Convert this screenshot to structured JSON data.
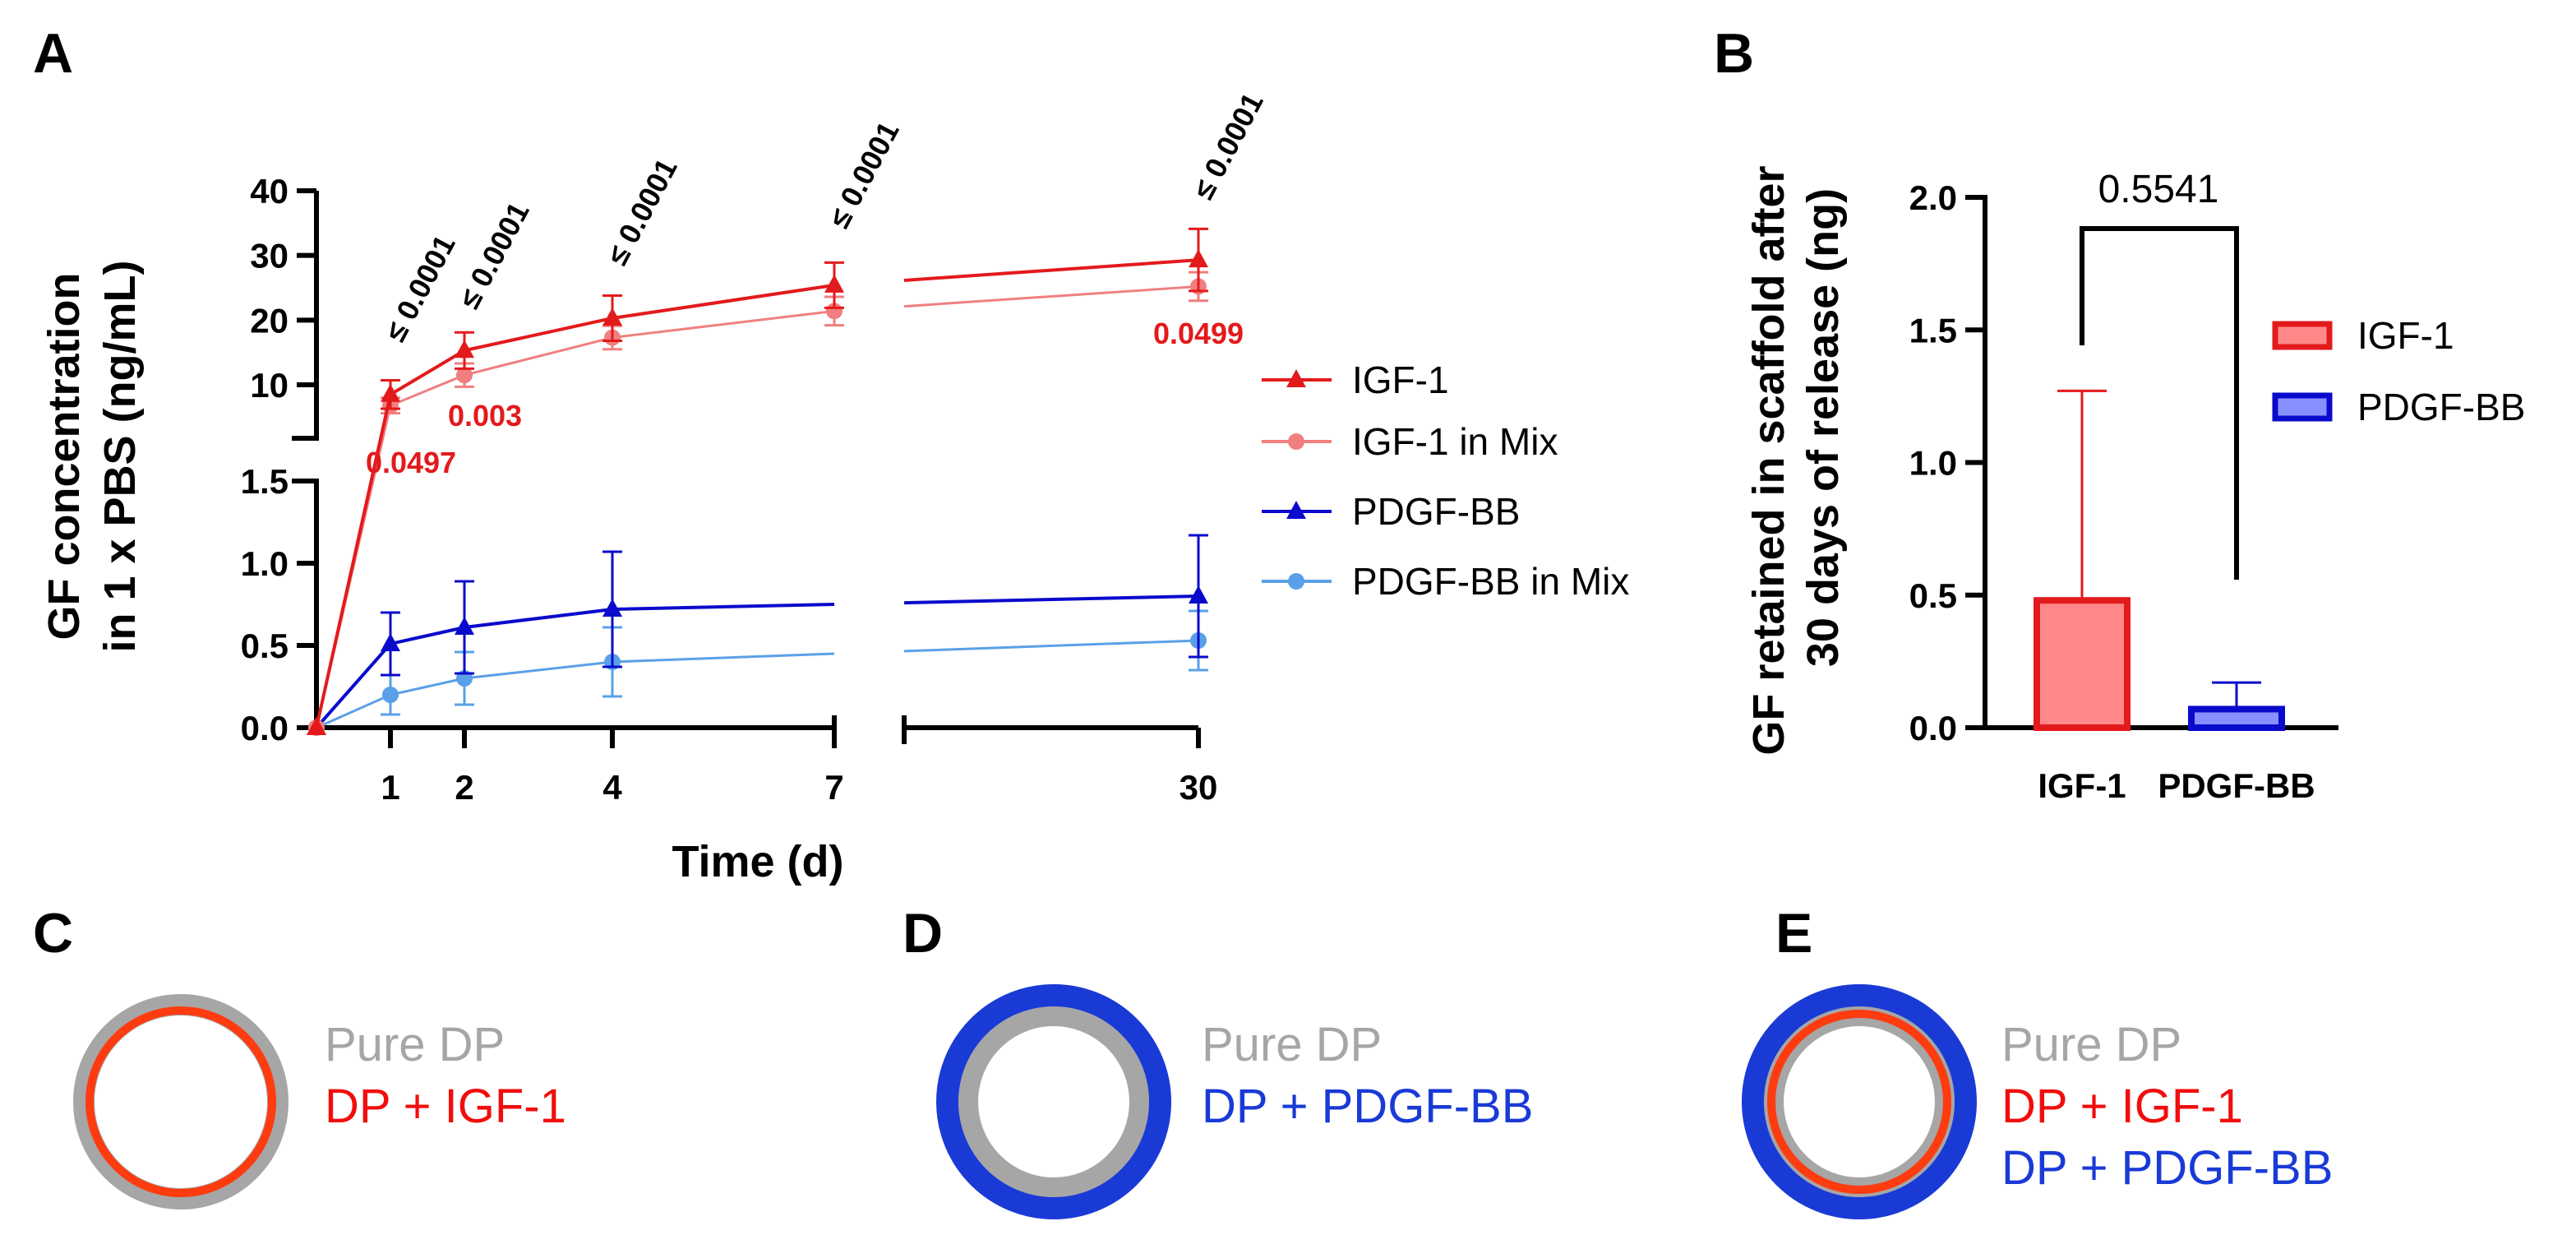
{
  "colors": {
    "igf1": "#e31a1c",
    "igf1_mix": "#f07f7f",
    "pdgfbb": "#0a0acc",
    "pdgfbb_mix": "#5aa0e8",
    "igf1_bar_fill": "#ff8888",
    "pdgfbb_bar_fill": "#8890ff",
    "ring_grey": "#a6a6a6",
    "ring_orange": "#ff3b10",
    "ring_blue": "#1a3ad6",
    "label_grey": "#a6a6a6",
    "label_red": "#f20d0d",
    "label_blue": "#1a3ad6"
  },
  "chart_data": [
    {
      "panel": "A",
      "type": "line",
      "xlabel": "Time (d)",
      "ylabel_lines": [
        "GF concentration",
        "in 1 x PBS (ng/mL)"
      ],
      "x_ticks": [
        "1",
        "2",
        "4",
        "7",
        "30"
      ],
      "upper_y_ticks": [
        "10",
        "20",
        "30",
        "40"
      ],
      "lower_y_ticks": [
        "0.0",
        "0.5",
        "1.0",
        "1.5"
      ],
      "upper_ylim": [
        0,
        40
      ],
      "lower_ylim": [
        0,
        1.5
      ],
      "series": [
        {
          "name": "IGF-1",
          "key": "igf1",
          "marker": "triangle",
          "x": [
            0,
            1,
            2,
            4,
            7,
            30
          ],
          "y": [
            0,
            8.5,
            15.3,
            20.3,
            25.4,
            29.3
          ],
          "err": [
            0,
            2.2,
            2.8,
            3.5,
            3.5,
            4.8
          ]
        },
        {
          "name": "IGF-1 in Mix",
          "key": "igf1_mix",
          "marker": "circle",
          "x": [
            0,
            1,
            2,
            4,
            7,
            30
          ],
          "y": [
            0,
            6.8,
            11.5,
            17.3,
            21.4,
            25.2
          ],
          "err": [
            0,
            1.2,
            1.8,
            1.8,
            2.2,
            2.2
          ]
        },
        {
          "name": "PDGF-BB",
          "key": "pdgfbb",
          "marker": "triangle",
          "x": [
            0,
            1,
            2,
            4,
            7,
            30
          ],
          "y": [
            0,
            0.51,
            0.61,
            0.72,
            0.75,
            0.8
          ],
          "err": [
            0,
            0.19,
            0.28,
            0.35,
            0,
            0.37
          ]
        },
        {
          "name": "PDGF-BB in Mix",
          "key": "pdgfbb_mix",
          "marker": "circle",
          "x": [
            0,
            1,
            2,
            4,
            7,
            30
          ],
          "y": [
            0,
            0.2,
            0.3,
            0.4,
            0.45,
            0.53
          ],
          "err": [
            0,
            0.12,
            0.16,
            0.21,
            0,
            0.18
          ]
        }
      ],
      "significance": [
        {
          "x": 1,
          "text": "≤ 0.0001"
        },
        {
          "x": 2,
          "text": "≤ 0.0001"
        },
        {
          "x": 4,
          "text": "≤ 0.0001"
        },
        {
          "x": 7,
          "text": "≤ 0.0001"
        },
        {
          "x": 30,
          "text": "≤ 0.0001"
        }
      ],
      "mix_pvalues": [
        {
          "x": 1,
          "text": "0.0497"
        },
        {
          "x": 2,
          "text": "0.003"
        },
        {
          "x": 30,
          "text": "0.0499"
        }
      ]
    },
    {
      "panel": "B",
      "type": "bar",
      "ylabel_lines": [
        "GF retained in scaffold after",
        "30 days of release (ng)"
      ],
      "categories": [
        "IGF-1",
        "PDGF-BB"
      ],
      "values": [
        0.48,
        0.07
      ],
      "errors": [
        0.79,
        0.1
      ],
      "ylim": [
        0,
        2.0
      ],
      "y_ticks": [
        "0.0",
        "0.5",
        "1.0",
        "1.5",
        "2.0"
      ],
      "comparison_pvalue": "0.5541",
      "legend": [
        "IGF-1",
        "PDGF-BB"
      ]
    }
  ],
  "panels": {
    "A": "A",
    "B": "B",
    "C": "C",
    "D": "D",
    "E": "E"
  },
  "rings": {
    "C": {
      "labels": [
        "Pure DP",
        "DP + IGF-1"
      ]
    },
    "D": {
      "labels": [
        "Pure DP",
        "DP + PDGF-BB"
      ]
    },
    "E": {
      "labels": [
        "Pure DP",
        "DP + IGF-1",
        "DP + PDGF-BB"
      ]
    }
  }
}
